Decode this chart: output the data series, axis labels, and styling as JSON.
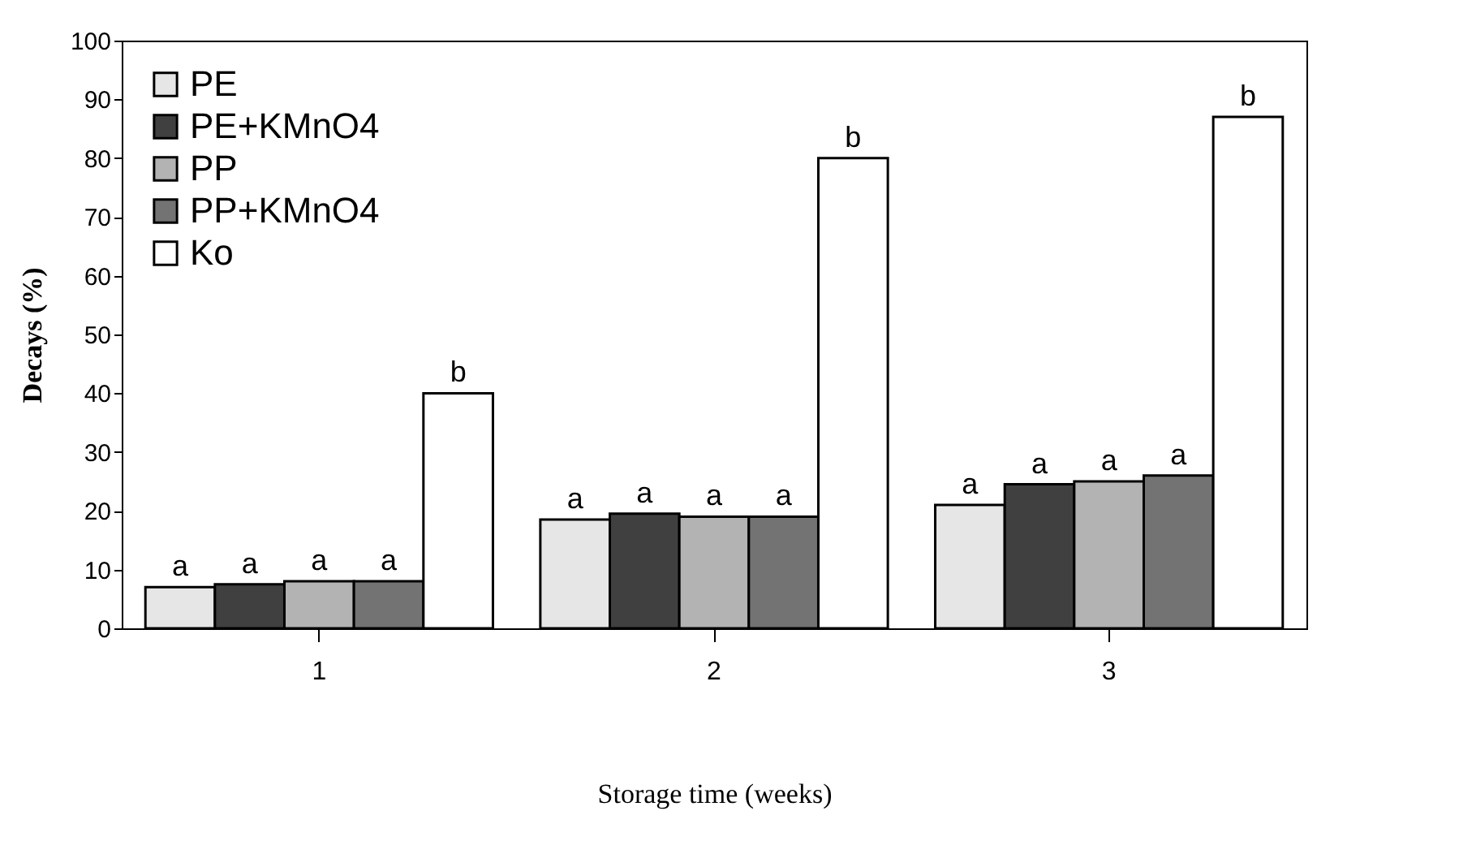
{
  "chart_data": {
    "type": "bar",
    "xlabel": "Storage time (weeks)",
    "ylabel": "Decays (%)",
    "categories": [
      "1",
      "2",
      "3"
    ],
    "series": [
      {
        "name": "PE",
        "color": "#e6e6e6",
        "values": [
          7,
          18.5,
          21
        ],
        "value_labels": [
          "a",
          "a",
          "a"
        ]
      },
      {
        "name": "PE+KMnO4",
        "color": "#404040",
        "values": [
          7.5,
          19.5,
          24.5
        ],
        "value_labels": [
          "a",
          "a",
          "a"
        ]
      },
      {
        "name": "PP",
        "color": "#b3b3b3",
        "values": [
          8,
          19,
          25
        ],
        "value_labels": [
          "a",
          "a",
          "a"
        ]
      },
      {
        "name": "PP+KMnO4",
        "color": "#737373",
        "values": [
          8,
          19,
          26
        ],
        "value_labels": [
          "a",
          "a",
          "a"
        ]
      },
      {
        "name": "Ko",
        "color": "#ffffff",
        "values": [
          40,
          80,
          87
        ],
        "value_labels": [
          "b",
          "b",
          "b"
        ]
      }
    ],
    "ylim": [
      0,
      100
    ],
    "yticks": [
      0,
      10,
      20,
      30,
      40,
      50,
      60,
      70,
      80,
      90,
      100
    ],
    "grid": false,
    "legend": "top left"
  }
}
